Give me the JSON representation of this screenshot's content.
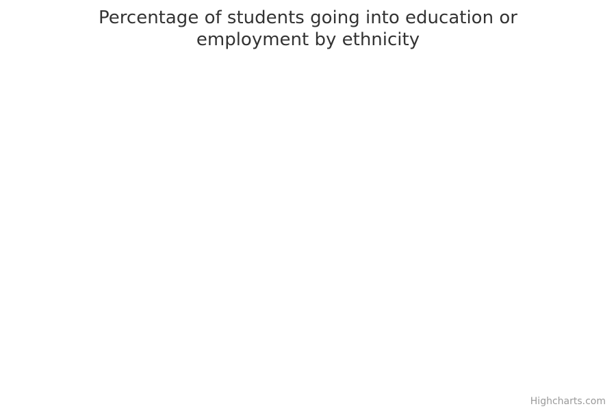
{
  "chart_data": {
    "type": "bar",
    "title_lines": [
      "Percentage of students going into education or",
      "employment by ethnicity"
    ],
    "series": []
  },
  "credits": {
    "label": "Highcharts.com"
  }
}
